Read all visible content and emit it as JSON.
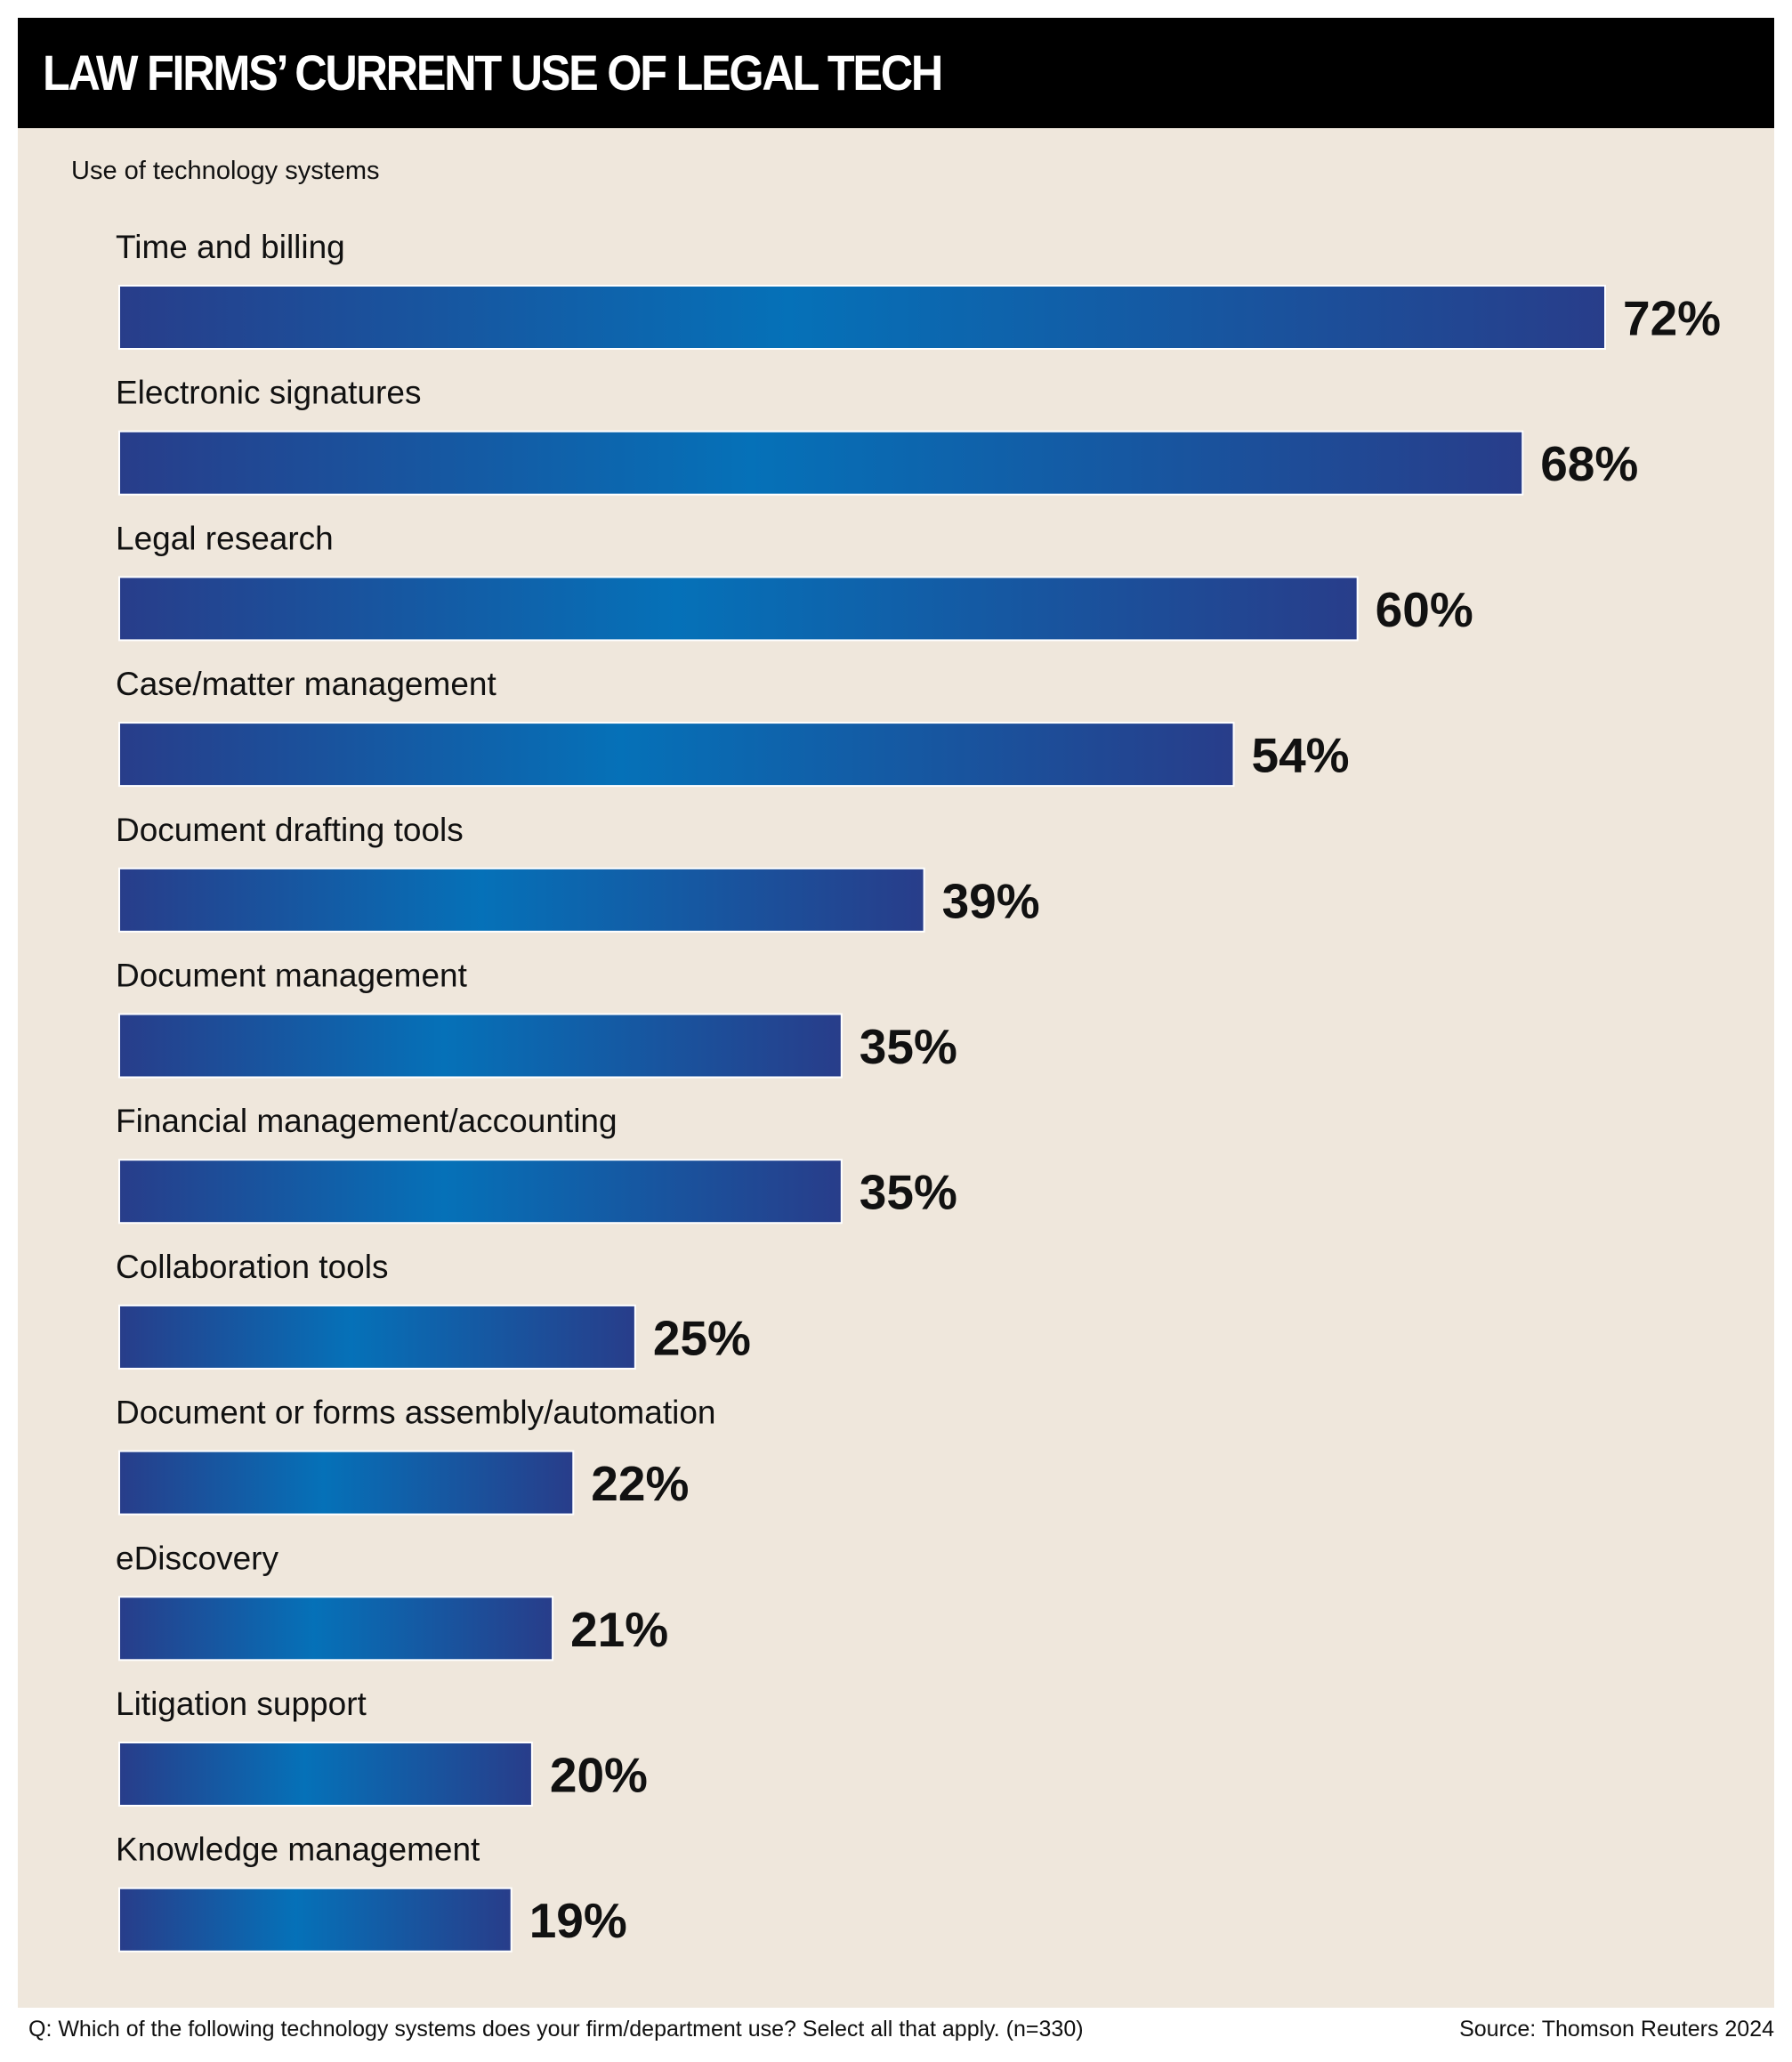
{
  "title": "LAW FIRMS’ CURRENT USE OF LEGAL TECH",
  "subtitle": "Use of technology systems",
  "footnote": "Q: Which of the following technology systems does your firm/department use? Select all that apply. (n=330)",
  "source": "Source: Thomson Reuters 2024",
  "colors": {
    "background": "#efe7dc",
    "title_bar": "#000000",
    "bar_dark": "#283d8a",
    "bar_light": "#0571b8"
  },
  "chart_data": {
    "type": "bar",
    "orientation": "horizontal",
    "title": "LAW FIRMS’ CURRENT USE OF LEGAL TECH",
    "subtitle": "Use of technology systems",
    "categories": [
      "Time and billing",
      "Electronic signatures",
      "Legal research",
      "Case/matter management",
      "Document drafting tools",
      "Document management",
      "Financial management/accounting",
      "Collaboration tools",
      "Document or forms assembly/automation",
      "eDiscovery",
      "Litigation support",
      "Knowledge management"
    ],
    "values": [
      72,
      68,
      60,
      54,
      39,
      35,
      35,
      25,
      22,
      21,
      20,
      19
    ],
    "value_labels": [
      "72%",
      "68%",
      "60%",
      "54%",
      "39%",
      "35%",
      "35%",
      "25%",
      "22%",
      "21%",
      "20%",
      "19%"
    ],
    "unit": "%",
    "xlim": [
      0,
      72
    ],
    "grid": false,
    "legend": "none"
  }
}
